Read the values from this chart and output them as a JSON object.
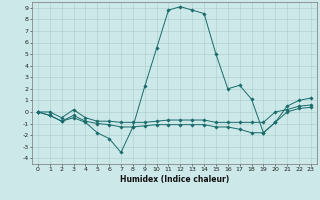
{
  "xlabel": "Humidex (Indice chaleur)",
  "background_color": "#cce8e8",
  "grid_color": "#aacece",
  "line_color": "#1a6b6b",
  "xlim": [
    -0.5,
    23.5
  ],
  "ylim": [
    -4.5,
    9.5
  ],
  "xticks": [
    0,
    1,
    2,
    3,
    4,
    5,
    6,
    7,
    8,
    9,
    10,
    11,
    12,
    13,
    14,
    15,
    16,
    17,
    18,
    19,
    20,
    21,
    22,
    23
  ],
  "yticks": [
    -4,
    -3,
    -2,
    -1,
    0,
    1,
    2,
    3,
    4,
    5,
    6,
    7,
    8,
    9
  ],
  "line1_x": [
    0,
    1,
    2,
    3,
    4,
    5,
    6,
    7,
    8,
    9,
    10,
    11,
    12,
    13,
    14,
    15,
    16,
    17,
    18,
    19,
    20,
    21,
    22,
    23
  ],
  "line1_y": [
    0.0,
    -0.3,
    -0.8,
    -0.5,
    -0.9,
    -1.8,
    -2.3,
    -3.5,
    -1.3,
    2.2,
    5.5,
    8.8,
    9.1,
    8.8,
    8.5,
    5.0,
    2.0,
    2.3,
    1.1,
    -1.8,
    -0.9,
    0.5,
    1.0,
    1.2
  ],
  "line2_x": [
    0,
    1,
    2,
    3,
    4,
    5,
    6,
    7,
    8,
    9,
    10,
    11,
    12,
    13,
    14,
    15,
    16,
    17,
    18,
    19,
    20,
    21,
    22,
    23
  ],
  "line2_y": [
    0.0,
    -0.3,
    -0.8,
    -0.3,
    -0.8,
    -1.0,
    -1.1,
    -1.3,
    -1.3,
    -1.2,
    -1.1,
    -1.1,
    -1.1,
    -1.1,
    -1.1,
    -1.3,
    -1.3,
    -1.5,
    -1.8,
    -1.8,
    -0.9,
    0.0,
    0.3,
    0.4
  ],
  "line3_x": [
    0,
    1,
    2,
    3,
    4,
    5,
    6,
    7,
    8,
    9,
    10,
    11,
    12,
    13,
    14,
    15,
    16,
    17,
    18,
    19,
    20,
    21,
    22,
    23
  ],
  "line3_y": [
    0.0,
    0.0,
    -0.5,
    0.2,
    -0.5,
    -0.8,
    -0.8,
    -0.9,
    -0.9,
    -0.9,
    -0.8,
    -0.7,
    -0.7,
    -0.7,
    -0.7,
    -0.9,
    -0.9,
    -0.9,
    -0.9,
    -0.9,
    0.0,
    0.2,
    0.5,
    0.6
  ]
}
